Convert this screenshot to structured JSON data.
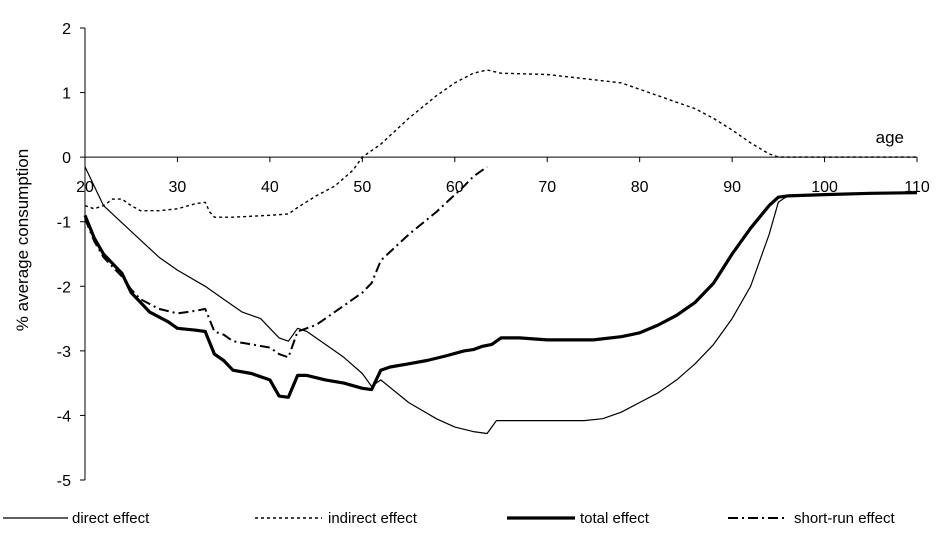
{
  "chart_data": {
    "type": "line",
    "ylabel": "% average consumption",
    "xlabel": "age",
    "xlim": [
      20,
      110
    ],
    "ylim": [
      -5,
      2
    ],
    "x_ticks": [
      20,
      30,
      40,
      50,
      60,
      70,
      80,
      90,
      100,
      110
    ],
    "y_ticks": [
      2,
      1,
      0,
      -1,
      -2,
      -3,
      -4,
      -5
    ],
    "grid": false,
    "legend_position": "bottom",
    "series": [
      {
        "name": "direct effect",
        "style": "thin-solid",
        "points": [
          [
            20,
            -0.15
          ],
          [
            22,
            -0.75
          ],
          [
            25,
            -1.15
          ],
          [
            28,
            -1.55
          ],
          [
            30,
            -1.75
          ],
          [
            33,
            -2.0
          ],
          [
            35,
            -2.2
          ],
          [
            37,
            -2.4
          ],
          [
            39,
            -2.5
          ],
          [
            41,
            -2.8
          ],
          [
            42,
            -2.85
          ],
          [
            43,
            -2.65
          ],
          [
            44,
            -2.7
          ],
          [
            46,
            -2.9
          ],
          [
            48,
            -3.1
          ],
          [
            50,
            -3.35
          ],
          [
            51,
            -3.55
          ],
          [
            52,
            -3.45
          ],
          [
            55,
            -3.8
          ],
          [
            58,
            -4.05
          ],
          [
            60,
            -4.18
          ],
          [
            62,
            -4.25
          ],
          [
            63.5,
            -4.28
          ],
          [
            64.5,
            -4.08
          ],
          [
            70,
            -4.08
          ],
          [
            74,
            -4.08
          ],
          [
            76,
            -4.05
          ],
          [
            78,
            -3.95
          ],
          [
            80,
            -3.8
          ],
          [
            82,
            -3.65
          ],
          [
            84,
            -3.45
          ],
          [
            86,
            -3.2
          ],
          [
            88,
            -2.9
          ],
          [
            90,
            -2.5
          ],
          [
            92,
            -2.0
          ],
          [
            94,
            -1.2
          ],
          [
            95,
            -0.7
          ],
          [
            96,
            -0.6
          ],
          [
            100,
            -0.58
          ],
          [
            105,
            -0.56
          ],
          [
            110,
            -0.55
          ]
        ]
      },
      {
        "name": "indirect effect",
        "style": "dotted",
        "points": [
          [
            20,
            -0.75
          ],
          [
            21,
            -0.8
          ],
          [
            22,
            -0.75
          ],
          [
            23,
            -0.65
          ],
          [
            24,
            -0.65
          ],
          [
            25,
            -0.75
          ],
          [
            26,
            -0.83
          ],
          [
            28,
            -0.83
          ],
          [
            30,
            -0.8
          ],
          [
            32,
            -0.72
          ],
          [
            33,
            -0.7
          ],
          [
            33.5,
            -0.85
          ],
          [
            34,
            -0.93
          ],
          [
            36,
            -0.93
          ],
          [
            40,
            -0.9
          ],
          [
            42,
            -0.88
          ],
          [
            43,
            -0.78
          ],
          [
            45,
            -0.6
          ],
          [
            47,
            -0.45
          ],
          [
            49,
            -0.2
          ],
          [
            50,
            0.0
          ],
          [
            52,
            0.2
          ],
          [
            55,
            0.6
          ],
          [
            58,
            0.95
          ],
          [
            60,
            1.15
          ],
          [
            62,
            1.3
          ],
          [
            63.5,
            1.35
          ],
          [
            65,
            1.3
          ],
          [
            70,
            1.28
          ],
          [
            75,
            1.2
          ],
          [
            78,
            1.15
          ],
          [
            80,
            1.05
          ],
          [
            83,
            0.9
          ],
          [
            86,
            0.75
          ],
          [
            88,
            0.6
          ],
          [
            90,
            0.42
          ],
          [
            92,
            0.22
          ],
          [
            94,
            0.05
          ],
          [
            95,
            0.0
          ],
          [
            100,
            0.0
          ],
          [
            105,
            0.0
          ],
          [
            110,
            0.0
          ]
        ]
      },
      {
        "name": "total effect",
        "style": "thick-solid",
        "points": [
          [
            20,
            -0.9
          ],
          [
            21,
            -1.25
          ],
          [
            22,
            -1.5
          ],
          [
            23,
            -1.65
          ],
          [
            24,
            -1.8
          ],
          [
            25,
            -2.1
          ],
          [
            26,
            -2.25
          ],
          [
            27,
            -2.4
          ],
          [
            29,
            -2.55
          ],
          [
            30,
            -2.65
          ],
          [
            32,
            -2.68
          ],
          [
            33,
            -2.7
          ],
          [
            34,
            -3.05
          ],
          [
            35,
            -3.15
          ],
          [
            36,
            -3.3
          ],
          [
            38,
            -3.35
          ],
          [
            40,
            -3.45
          ],
          [
            41,
            -3.7
          ],
          [
            42,
            -3.72
          ],
          [
            43,
            -3.38
          ],
          [
            44,
            -3.38
          ],
          [
            46,
            -3.45
          ],
          [
            48,
            -3.5
          ],
          [
            50,
            -3.58
          ],
          [
            51,
            -3.6
          ],
          [
            52,
            -3.3
          ],
          [
            53,
            -3.25
          ],
          [
            55,
            -3.2
          ],
          [
            57,
            -3.15
          ],
          [
            59,
            -3.08
          ],
          [
            61,
            -3.0
          ],
          [
            62,
            -2.98
          ],
          [
            63,
            -2.93
          ],
          [
            64,
            -2.9
          ],
          [
            65,
            -2.8
          ],
          [
            67,
            -2.8
          ],
          [
            70,
            -2.83
          ],
          [
            75,
            -2.83
          ],
          [
            78,
            -2.78
          ],
          [
            80,
            -2.72
          ],
          [
            82,
            -2.6
          ],
          [
            84,
            -2.45
          ],
          [
            86,
            -2.25
          ],
          [
            88,
            -1.95
          ],
          [
            90,
            -1.5
          ],
          [
            92,
            -1.1
          ],
          [
            94,
            -0.75
          ],
          [
            95,
            -0.62
          ],
          [
            96,
            -0.6
          ],
          [
            100,
            -0.58
          ],
          [
            105,
            -0.56
          ],
          [
            110,
            -0.55
          ]
        ]
      },
      {
        "name": "short-run effect",
        "style": "dash-dot",
        "points": [
          [
            20,
            -0.95
          ],
          [
            21,
            -1.3
          ],
          [
            22,
            -1.55
          ],
          [
            23,
            -1.7
          ],
          [
            24,
            -1.85
          ],
          [
            25,
            -2.05
          ],
          [
            26,
            -2.2
          ],
          [
            28,
            -2.35
          ],
          [
            30,
            -2.42
          ],
          [
            32,
            -2.38
          ],
          [
            33,
            -2.35
          ],
          [
            34,
            -2.7
          ],
          [
            35,
            -2.75
          ],
          [
            36,
            -2.85
          ],
          [
            38,
            -2.9
          ],
          [
            40,
            -2.95
          ],
          [
            41,
            -3.05
          ],
          [
            42,
            -3.1
          ],
          [
            43,
            -2.7
          ],
          [
            45,
            -2.6
          ],
          [
            47,
            -2.4
          ],
          [
            50,
            -2.1
          ],
          [
            51,
            -1.95
          ],
          [
            52,
            -1.6
          ],
          [
            55,
            -1.2
          ],
          [
            58,
            -0.85
          ],
          [
            61,
            -0.45
          ],
          [
            62,
            -0.3
          ],
          [
            63,
            -0.2
          ],
          [
            63.5,
            -0.15
          ]
        ]
      }
    ]
  }
}
